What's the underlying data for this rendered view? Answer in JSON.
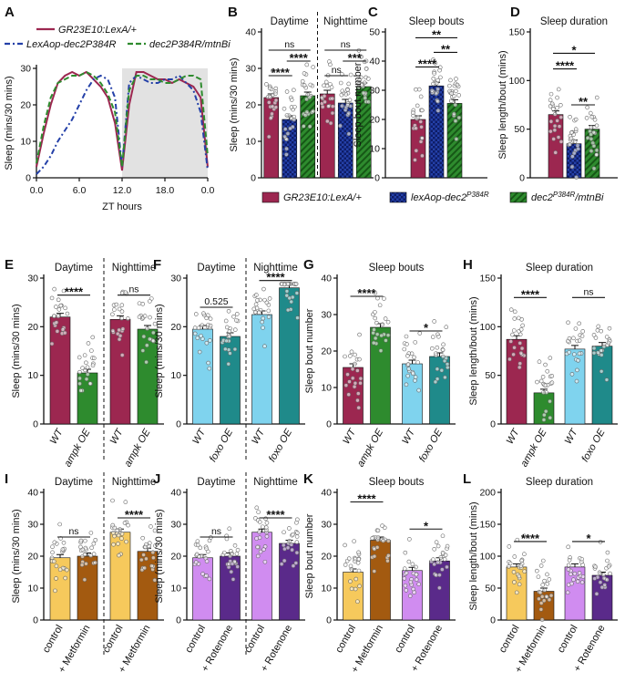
{
  "colors": {
    "maroon": "#9c2750",
    "blue": "#2440a8",
    "green": "#2e8b2e",
    "cyan": "#7fd3ee",
    "teal": "#1f8a8a",
    "yellow": "#f6c95c",
    "brown": "#a35a10",
    "lilac": "#d08cf0",
    "purple": "#5a2a8a",
    "gray_bg": "#e2e2e2"
  },
  "legend_bottom": {
    "items": [
      {
        "label": "GR23E10:LexA/+",
        "color": "maroon",
        "pattern": "solid"
      },
      {
        "label": "lexAop-dec2P384R",
        "color": "blue",
        "pattern": "check"
      },
      {
        "label": "dec2P384R/mtnBi",
        "color": "green",
        "pattern": "stripe"
      }
    ]
  },
  "chart_data": [
    {
      "panel": "A",
      "type": "line",
      "legend": [
        "GR23E10:LexA/+",
        "LexAop-dec2P384R",
        "dec2P384R/mtnBi"
      ],
      "legend_position": "top",
      "xlabel": "ZT hours",
      "ylabel": "Sleep (mins/30 mins)",
      "x_ticks": [
        "0.0",
        "6.0",
        "12.0",
        "18.0",
        "0.0"
      ],
      "xlim": [
        0,
        24
      ],
      "ylim": [
        0,
        30
      ],
      "y_ticks": [
        0,
        10,
        20,
        30
      ],
      "shaded_region": [
        12,
        24
      ],
      "x": [
        0,
        1,
        2,
        3,
        4,
        5,
        6,
        7,
        8,
        9,
        10,
        11,
        12,
        13,
        14,
        15,
        16,
        17,
        18,
        19,
        20,
        21,
        22,
        23,
        24
      ],
      "series": [
        {
          "name": "GR23E10:LexA/+",
          "color": "maroon",
          "style": "solid",
          "values": [
            3,
            12,
            20,
            26,
            28,
            29,
            28,
            29,
            27,
            25,
            22,
            15,
            2,
            20,
            29,
            29,
            28,
            27,
            27,
            26,
            27,
            26,
            25,
            22,
            3
          ]
        },
        {
          "name": "LexAop-dec2P384R",
          "color": "blue",
          "style": "dashdot",
          "values": [
            1,
            3,
            6,
            10,
            13,
            16,
            20,
            24,
            27,
            28,
            27,
            22,
            3,
            26,
            28,
            27,
            26,
            26,
            27,
            27,
            28,
            26,
            24,
            18,
            2
          ]
        },
        {
          "name": "dec2P384R/mtnBi",
          "color": "green",
          "style": "dashed",
          "values": [
            4,
            14,
            22,
            26,
            27,
            28,
            28,
            29,
            28,
            26,
            23,
            18,
            3,
            24,
            28,
            28,
            27,
            27,
            26,
            26,
            27,
            28,
            28,
            27,
            6
          ]
        }
      ]
    },
    {
      "panel": "B",
      "type": "bar",
      "group_titles": [
        "Daytime",
        "Nighttime"
      ],
      "ylabel": "Sleep (mins/30 mins)",
      "ylim": [
        0,
        40
      ],
      "y_ticks": [
        0,
        10,
        20,
        30,
        40
      ],
      "groups": [
        {
          "bars": [
            {
              "value": 22,
              "color": "maroon",
              "pattern": "solid"
            },
            {
              "value": 16,
              "color": "blue",
              "pattern": "check"
            },
            {
              "value": 22.5,
              "color": "green",
              "pattern": "stripe"
            }
          ]
        },
        {
          "bars": [
            {
              "value": 23,
              "color": "maroon",
              "pattern": "solid"
            },
            {
              "value": 20.5,
              "color": "blue",
              "pattern": "check"
            },
            {
              "value": 25,
              "color": "green",
              "pattern": "stripe"
            }
          ]
        }
      ],
      "annotations": [
        {
          "text": "ns",
          "g": 0,
          "from": 0,
          "to": 2,
          "level": 35
        },
        {
          "text": "****",
          "g": 0,
          "from": 1,
          "to": 2,
          "level": 32
        },
        {
          "text": "****",
          "g": 0,
          "from": 0,
          "to": 1,
          "level": 28
        },
        {
          "text": "ns",
          "g": 1,
          "from": 0,
          "to": 2,
          "level": 35
        },
        {
          "text": "***",
          "g": 1,
          "from": 1,
          "to": 2,
          "level": 32
        },
        {
          "text": "ns",
          "g": 1,
          "from": 0,
          "to": 1,
          "level": 28
        }
      ],
      "dashed_separator": true
    },
    {
      "panel": "C",
      "type": "bar",
      "title": "Sleep bouts",
      "ylabel": "Sleep bout number",
      "ylim": [
        0,
        50
      ],
      "y_ticks": [
        0,
        10,
        20,
        30,
        40,
        50
      ],
      "groups": [
        {
          "bars": [
            {
              "value": 20,
              "color": "maroon",
              "pattern": "solid"
            },
            {
              "value": 31.5,
              "color": "blue",
              "pattern": "check"
            },
            {
              "value": 25.5,
              "color": "green",
              "pattern": "stripe"
            }
          ]
        }
      ],
      "annotations": [
        {
          "text": "**",
          "g": 0,
          "from": 0,
          "to": 2,
          "level": 48
        },
        {
          "text": "**",
          "g": 0,
          "from": 1,
          "to": 2,
          "level": 43
        },
        {
          "text": "****",
          "g": 0,
          "from": 0,
          "to": 1,
          "level": 38
        }
      ]
    },
    {
      "panel": "D",
      "type": "bar",
      "title": "Sleep duration",
      "ylabel": "Sleep length/bout (mins)",
      "ylim": [
        0,
        150
      ],
      "y_ticks": [
        0,
        50,
        100,
        150
      ],
      "groups": [
        {
          "bars": [
            {
              "value": 65,
              "color": "maroon",
              "pattern": "solid"
            },
            {
              "value": 35,
              "color": "blue",
              "pattern": "check"
            },
            {
              "value": 50,
              "color": "green",
              "pattern": "stripe"
            }
          ]
        }
      ],
      "annotations": [
        {
          "text": "*",
          "g": 0,
          "from": 0,
          "to": 2,
          "level": 128
        },
        {
          "text": "****",
          "g": 0,
          "from": 0,
          "to": 1,
          "level": 112
        },
        {
          "text": "**",
          "g": 0,
          "from": 1,
          "to": 2,
          "level": 75
        }
      ]
    },
    {
      "panel": "E",
      "type": "bar",
      "group_titles": [
        "Daytime",
        "Nighttime"
      ],
      "ylabel": "Sleep (mins/30 mins)",
      "ylim": [
        0,
        30
      ],
      "y_ticks": [
        0,
        10,
        20,
        30
      ],
      "groups": [
        {
          "labels": [
            "WT",
            "ampk OE"
          ],
          "bars": [
            {
              "value": 22,
              "color": "maroon"
            },
            {
              "value": 10.5,
              "color": "green"
            }
          ]
        },
        {
          "labels": [
            "WT",
            "ampk OE"
          ],
          "bars": [
            {
              "value": 21.5,
              "color": "maroon"
            },
            {
              "value": 19.5,
              "color": "green"
            }
          ]
        }
      ],
      "annotations": [
        {
          "text": "****",
          "g": 0,
          "from": 0,
          "to": 1,
          "level": 26.5
        },
        {
          "text": "ns",
          "g": 1,
          "from": 0,
          "to": 1,
          "level": 26.5
        }
      ],
      "dashed_separator": true,
      "italic_labels": true
    },
    {
      "panel": "F",
      "type": "bar",
      "group_titles": [
        "Daytime",
        "Nighttime"
      ],
      "ylabel": "Sleep (mins/30 mins)",
      "ylim": [
        0,
        30
      ],
      "y_ticks": [
        0,
        10,
        20,
        30
      ],
      "groups": [
        {
          "labels": [
            "WT",
            "foxo OE"
          ],
          "bars": [
            {
              "value": 19.5,
              "color": "cyan"
            },
            {
              "value": 18,
              "color": "teal"
            }
          ]
        },
        {
          "labels": [
            "WT",
            "foxo OE"
          ],
          "bars": [
            {
              "value": 22.5,
              "color": "cyan"
            },
            {
              "value": 28,
              "color": "teal"
            }
          ]
        }
      ],
      "annotations": [
        {
          "text": "0.525",
          "g": 0,
          "from": 0,
          "to": 1,
          "level": 24,
          "plain": true
        },
        {
          "text": "****",
          "g": 1,
          "from": 0,
          "to": 1,
          "level": 29.5
        }
      ],
      "dashed_separator": true,
      "italic_labels": true
    },
    {
      "panel": "G",
      "type": "bar",
      "title": "Sleep bouts",
      "ylabel": "Sleep bout number",
      "ylim": [
        0,
        40
      ],
      "y_ticks": [
        0,
        10,
        20,
        30,
        40
      ],
      "groups": [
        {
          "labels": [
            "WT",
            "ampk OE"
          ],
          "bars": [
            {
              "value": 15.5,
              "color": "maroon"
            },
            {
              "value": 26.5,
              "color": "green"
            }
          ]
        },
        {
          "labels": [
            "WT",
            "foxo OE"
          ],
          "bars": [
            {
              "value": 16.5,
              "color": "cyan"
            },
            {
              "value": 18.5,
              "color": "teal"
            }
          ]
        }
      ],
      "annotations": [
        {
          "text": "****",
          "g": 0,
          "from": 0,
          "to": 1,
          "level": 35
        },
        {
          "text": "*",
          "g": 1,
          "from": 0,
          "to": 1,
          "level": 25.5
        }
      ],
      "italic_labels": true
    },
    {
      "panel": "H",
      "type": "bar",
      "title": "Sleep duration",
      "ylabel": "Sleep length/bout (mins)",
      "ylim": [
        0,
        150
      ],
      "y_ticks": [
        0,
        50,
        100,
        150
      ],
      "groups": [
        {
          "labels": [
            "WT",
            "ampk OE"
          ],
          "bars": [
            {
              "value": 87,
              "color": "maroon"
            },
            {
              "value": 32,
              "color": "green"
            }
          ]
        },
        {
          "labels": [
            "WT",
            "foxo OE"
          ],
          "bars": [
            {
              "value": 77,
              "color": "cyan"
            },
            {
              "value": 80,
              "color": "teal"
            }
          ]
        }
      ],
      "annotations": [
        {
          "text": "****",
          "g": 0,
          "from": 0,
          "to": 1,
          "level": 130
        },
        {
          "text": "ns",
          "g": 1,
          "from": 0,
          "to": 1,
          "level": 130
        }
      ],
      "italic_labels": true
    },
    {
      "panel": "I",
      "type": "bar",
      "group_titles": [
        "Daytime",
        "Nighttime"
      ],
      "ylabel": "Sleep (mins/30 mins)",
      "ylim": [
        0,
        40
      ],
      "y_ticks": [
        0,
        10,
        20,
        30,
        40
      ],
      "groups": [
        {
          "labels": [
            "control",
            "+ Metformin"
          ],
          "bars": [
            {
              "value": 19.5,
              "color": "yellow"
            },
            {
              "value": 20,
              "color": "brown"
            }
          ]
        },
        {
          "labels": [
            "control",
            "+ Metformin"
          ],
          "bars": [
            {
              "value": 27.5,
              "color": "yellow"
            },
            {
              "value": 21.5,
              "color": "brown"
            }
          ]
        }
      ],
      "annotations": [
        {
          "text": "ns",
          "g": 0,
          "from": 0,
          "to": 1,
          "level": 26
        },
        {
          "text": "****",
          "g": 1,
          "from": 0,
          "to": 1,
          "level": 32
        }
      ],
      "dashed_separator": true
    },
    {
      "panel": "J",
      "type": "bar",
      "group_titles": [
        "Daytime",
        "Nighttime"
      ],
      "ylabel": "Sleep (mins/30 mins)",
      "ylim": [
        0,
        40
      ],
      "y_ticks": [
        0,
        10,
        20,
        30,
        40
      ],
      "groups": [
        {
          "labels": [
            "control",
            "+ Rotenone"
          ],
          "bars": [
            {
              "value": 19.5,
              "color": "lilac"
            },
            {
              "value": 20,
              "color": "purple"
            }
          ]
        },
        {
          "labels": [
            "control",
            "+ Rotenone"
          ],
          "bars": [
            {
              "value": 27.5,
              "color": "lilac"
            },
            {
              "value": 24,
              "color": "purple"
            }
          ]
        }
      ],
      "annotations": [
        {
          "text": "ns",
          "g": 0,
          "from": 0,
          "to": 1,
          "level": 26
        },
        {
          "text": "****",
          "g": 1,
          "from": 0,
          "to": 1,
          "level": 32
        }
      ],
      "dashed_separator": true
    },
    {
      "panel": "K",
      "type": "bar",
      "title": "Sleep bouts",
      "ylabel": "Sleep bout number",
      "ylim": [
        0,
        40
      ],
      "y_ticks": [
        0,
        10,
        20,
        30,
        40
      ],
      "groups": [
        {
          "labels": [
            "control",
            "+ Metformin"
          ],
          "bars": [
            {
              "value": 15,
              "color": "yellow"
            },
            {
              "value": 25,
              "color": "brown"
            }
          ]
        },
        {
          "labels": [
            "control",
            "+ Rotenone"
          ],
          "bars": [
            {
              "value": 15.5,
              "color": "lilac"
            },
            {
              "value": 18.5,
              "color": "purple"
            }
          ]
        }
      ],
      "annotations": [
        {
          "text": "****",
          "g": 0,
          "from": 0,
          "to": 1,
          "level": 37
        },
        {
          "text": "*",
          "g": 1,
          "from": 0,
          "to": 1,
          "level": 28.5
        }
      ]
    },
    {
      "panel": "L",
      "type": "bar",
      "title": "Sleep duration",
      "ylabel": "Sleep length/bout (mins)",
      "ylim": [
        0,
        200
      ],
      "y_ticks": [
        0,
        50,
        100,
        150,
        200
      ],
      "groups": [
        {
          "labels": [
            "control",
            "+ Metformin"
          ],
          "bars": [
            {
              "value": 83,
              "color": "yellow"
            },
            {
              "value": 45,
              "color": "brown"
            }
          ]
        },
        {
          "labels": [
            "control",
            "+ Rotenone"
          ],
          "bars": [
            {
              "value": 83,
              "color": "lilac"
            },
            {
              "value": 70,
              "color": "purple"
            }
          ]
        }
      ],
      "annotations": [
        {
          "text": "****",
          "g": 0,
          "from": 0,
          "to": 1,
          "level": 123
        },
        {
          "text": "*",
          "g": 1,
          "from": 0,
          "to": 1,
          "level": 123
        }
      ]
    }
  ]
}
